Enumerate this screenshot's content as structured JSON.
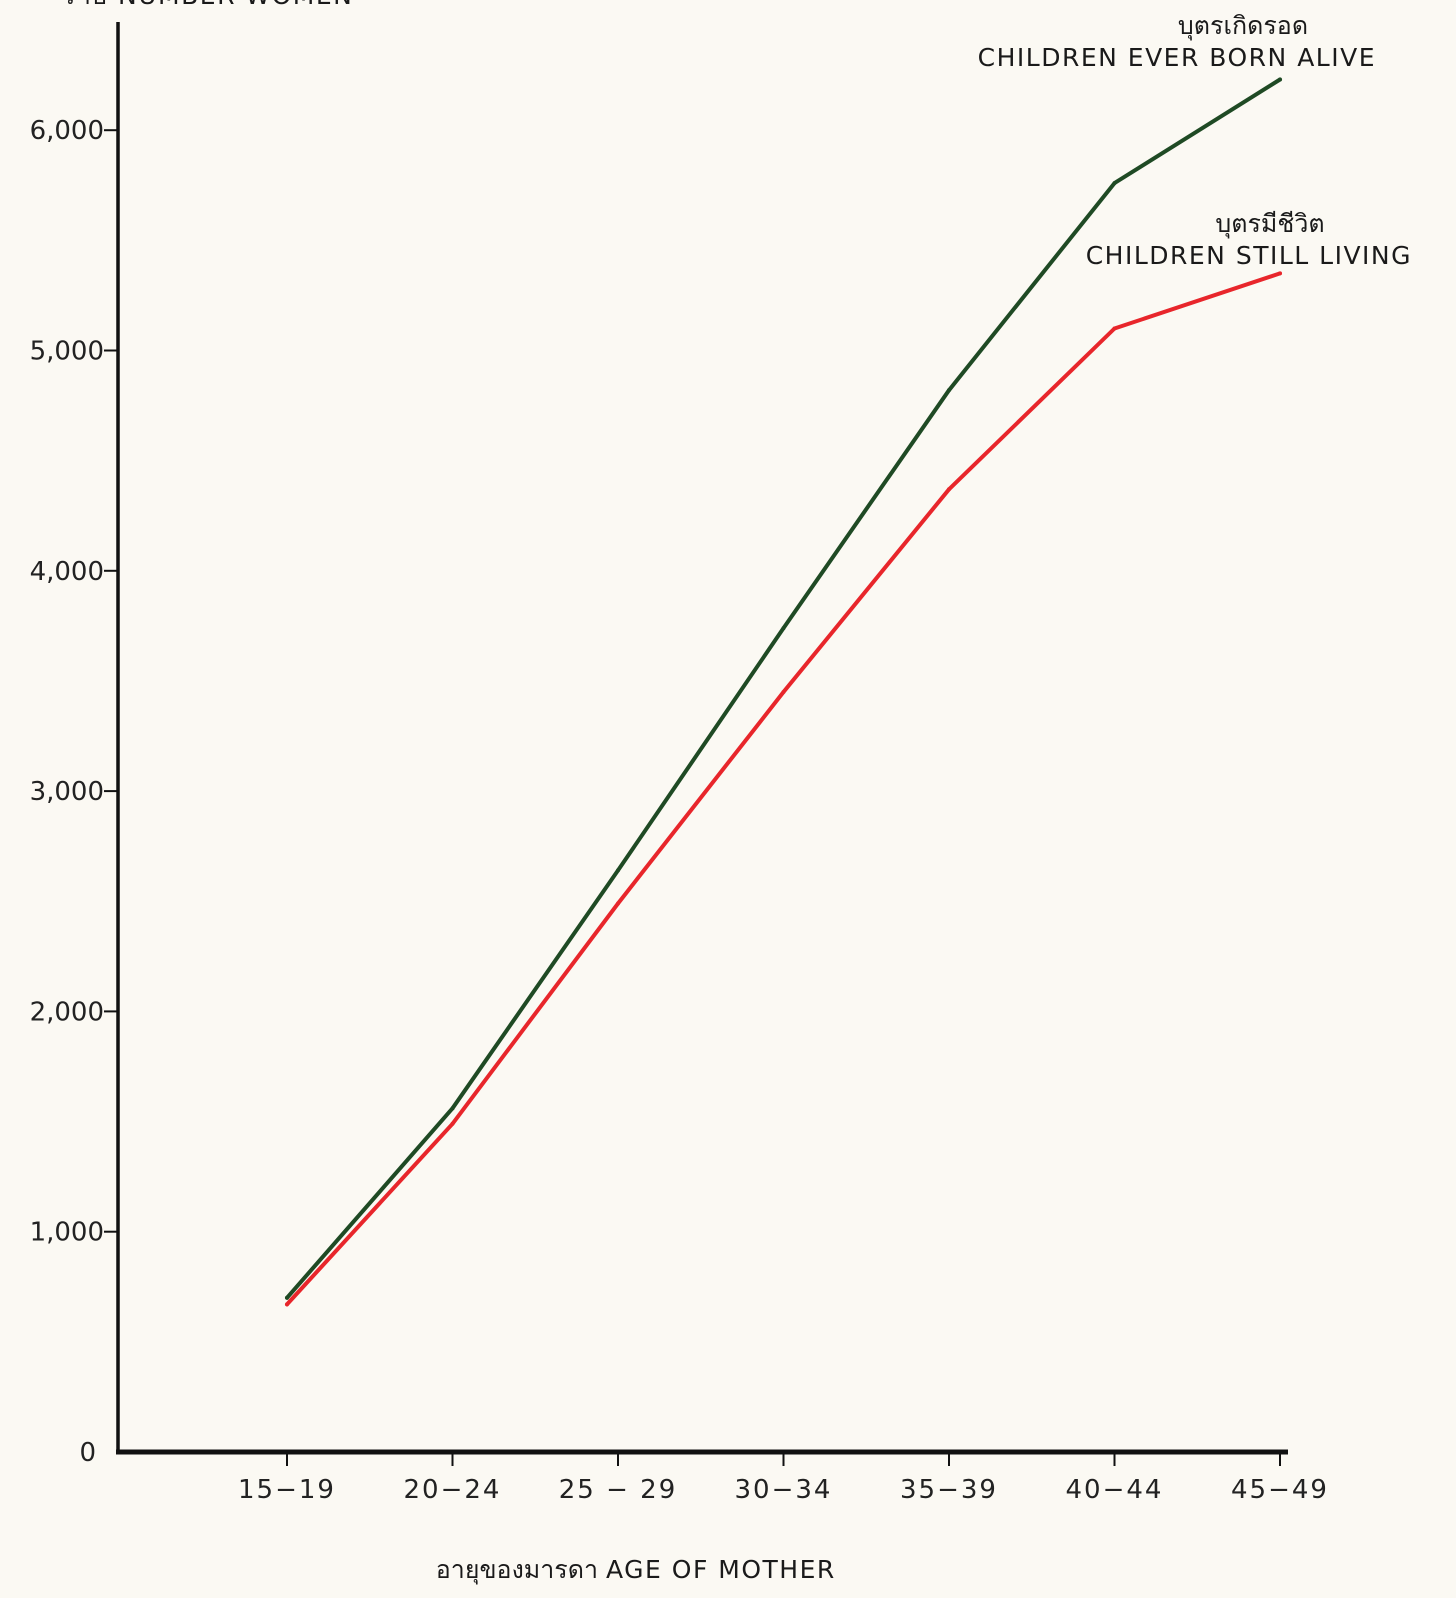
{
  "chart_data": {
    "type": "line",
    "ylabel": "ราย NUMBER WOMEN",
    "xlabel_thai": "อายุของมารดา",
    "xlabel": "AGE OF MOTHER",
    "categories": [
      "15-19",
      "20-24",
      "25-29",
      "30-34",
      "35-39",
      "40-44",
      "45-49"
    ],
    "x_tick_labels": [
      "15−19",
      "20−24",
      "25 − 29",
      "30−34",
      "35−39",
      "40−44",
      "45−49"
    ],
    "y_ticks": [
      0,
      1000,
      2000,
      3000,
      4000,
      5000,
      6000
    ],
    "y_tick_labels": [
      "0",
      "1,000",
      "2,000",
      "3,000",
      "4,000",
      "5,000",
      "6,000"
    ],
    "ylim": [
      0,
      6500
    ],
    "grid": false,
    "series": [
      {
        "name": "CHILDREN EVER BORN ALIVE",
        "name_thai": "บุตรเกิดรอด",
        "color": "#1f4a24",
        "values": [
          700,
          1560,
          2640,
          3740,
          4820,
          5760,
          6230
        ]
      },
      {
        "name": "CHILDREN STILL LIVING",
        "name_thai": "บุตรมีชีวิต",
        "color": "#e8262b",
        "values": [
          670,
          1490,
          2490,
          3450,
          4370,
          5100,
          5350
        ]
      }
    ]
  }
}
